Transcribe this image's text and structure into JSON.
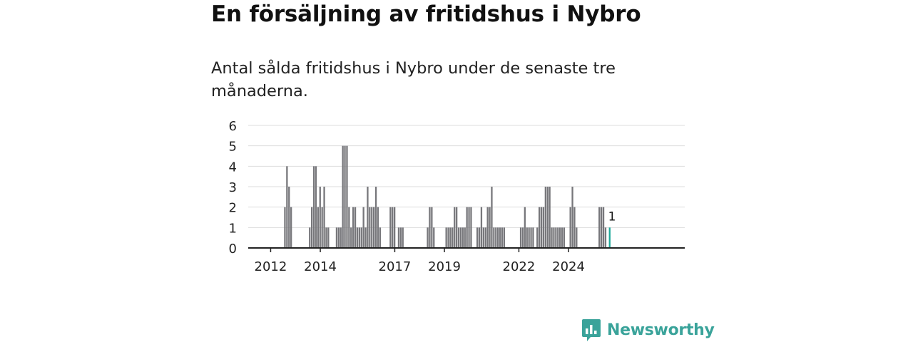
{
  "title": "En försäljning av fritidshus i Nybro",
  "subtitle": "Antal sålda fritidshus i Nybro under de senaste tre månaderna.",
  "brand": {
    "name": "Newsworthy",
    "icon": "newsworthy-logo-icon",
    "color": "#3aa39a"
  },
  "colors": {
    "bar": "#77777b",
    "highlight": "#1fa99a",
    "grid": "#dddddd",
    "axis": "#222222"
  },
  "chart_data": {
    "type": "bar",
    "ylim": [
      0,
      6
    ],
    "yticks": [
      0,
      1,
      2,
      3,
      4,
      5,
      6
    ],
    "x_start": "2011-11",
    "xticks": [
      {
        "label": "2012",
        "date": "2012-09"
      },
      {
        "label": "2014",
        "date": "2014-09"
      },
      {
        "label": "2017",
        "date": "2017-09"
      },
      {
        "label": "2019",
        "date": "2019-09"
      },
      {
        "label": "2022",
        "date": "2022-09"
      },
      {
        "label": "2024",
        "date": "2024-09"
      }
    ],
    "values": [
      0,
      0,
      0,
      0,
      0,
      0,
      0,
      0,
      0,
      0,
      0,
      0,
      0,
      0,
      0,
      0,
      0,
      2,
      4,
      3,
      2,
      0,
      0,
      0,
      0,
      0,
      0,
      0,
      0,
      1,
      2,
      4,
      4,
      2,
      3,
      2,
      3,
      1,
      1,
      0,
      0,
      0,
      1,
      1,
      1,
      5,
      5,
      5,
      2,
      1,
      2,
      2,
      1,
      1,
      1,
      2,
      1,
      3,
      2,
      2,
      2,
      3,
      2,
      1,
      0,
      0,
      0,
      0,
      2,
      2,
      2,
      0,
      1,
      1,
      1,
      0,
      0,
      0,
      0,
      0,
      0,
      0,
      0,
      0,
      0,
      0,
      1,
      2,
      2,
      1,
      0,
      0,
      0,
      0,
      0,
      1,
      1,
      1,
      1,
      2,
      2,
      1,
      1,
      1,
      1,
      2,
      2,
      2,
      0,
      0,
      1,
      1,
      2,
      1,
      1,
      2,
      2,
      3,
      1,
      1,
      1,
      1,
      1,
      1,
      0,
      0,
      0,
      0,
      0,
      0,
      0,
      1,
      1,
      2,
      1,
      1,
      1,
      1,
      0,
      1,
      2,
      2,
      2,
      3,
      3,
      3,
      1,
      1,
      1,
      1,
      1,
      1,
      1,
      0,
      0,
      2,
      3,
      2,
      1,
      0,
      0,
      0,
      0,
      0,
      0,
      0,
      0,
      0,
      0,
      2,
      2,
      2,
      1,
      0,
      1
    ],
    "last_point": {
      "value": 1,
      "label": "1"
    }
  }
}
